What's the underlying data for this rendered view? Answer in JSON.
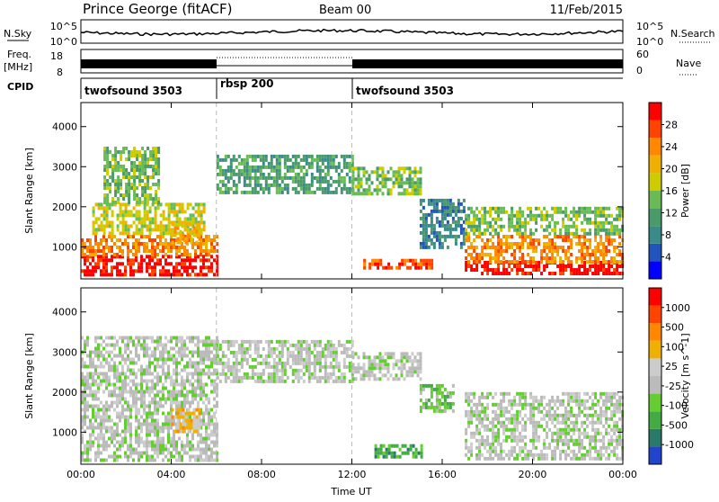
{
  "header": {
    "station": "Prince George (fitACF)",
    "beam": "Beam 00",
    "date": "11/Feb/2015"
  },
  "top_panels": {
    "nsky": {
      "label": "N.Sky",
      "ticks": [
        "10^5",
        "10^0"
      ],
      "right_label": "N.Search",
      "right_ticks": [
        "10^5",
        "10^0"
      ]
    },
    "freq": {
      "label_line1": "Freq.",
      "label_line2": "[MHz]",
      "ticks": [
        "18",
        "8"
      ],
      "right_label": "Nave",
      "right_ticks": [
        "60",
        "0"
      ]
    },
    "cpid": {
      "label": "CPID",
      "segments": [
        {
          "name": "twofsound 3503",
          "start_h": 0,
          "end_h": 6
        },
        {
          "name": "rbsp 200",
          "start_h": 6,
          "end_h": 12
        },
        {
          "name": "twofsound 3503",
          "start_h": 12,
          "end_h": 24
        }
      ]
    }
  },
  "chart_data": [
    {
      "type": "heatmap",
      "panel": "power",
      "ylabel": "Slant Range [km]",
      "xlabel": "",
      "y_ticks": [
        1000,
        2000,
        3000,
        4000
      ],
      "ylim": [
        200,
        4600
      ],
      "x_ticks_h": [
        0,
        4,
        8,
        12,
        16,
        20,
        24
      ],
      "xlim_h": [
        0,
        24
      ],
      "colorbar": {
        "label": "Power [dB]",
        "ticks": [
          "4",
          "8",
          "12",
          "16",
          "20",
          "24",
          "28"
        ],
        "colors": [
          "#0000ff",
          "#2255bb",
          "#3a8a8a",
          "#4a9a6a",
          "#6abb55",
          "#cccc00",
          "#f0b000",
          "#ff8800",
          "#ff4400",
          "#ff0000"
        ]
      },
      "regions": [
        {
          "t0": 0.0,
          "t1": 6.0,
          "r0": 300,
          "r1": 800,
          "level": 9
        },
        {
          "t0": 0.0,
          "t1": 6.0,
          "r0": 800,
          "r1": 1300,
          "level": 7
        },
        {
          "t0": 0.5,
          "t1": 5.5,
          "r0": 1300,
          "r1": 2100,
          "level": 5
        },
        {
          "t0": 1.0,
          "t1": 3.5,
          "r0": 2100,
          "r1": 3500,
          "level": 4
        },
        {
          "t0": 4.0,
          "t1": 5.3,
          "r0": 1100,
          "r1": 1600,
          "level": 6
        },
        {
          "t0": 6.0,
          "t1": 12.0,
          "r0": 2400,
          "r1": 3300,
          "level": 3
        },
        {
          "t0": 12.0,
          "t1": 15.0,
          "r0": 2300,
          "r1": 3000,
          "level": 4
        },
        {
          "t0": 12.5,
          "t1": 15.5,
          "r0": 450,
          "r1": 700,
          "level": 8
        },
        {
          "t0": 15.0,
          "t1": 17.0,
          "r0": 1000,
          "r1": 2200,
          "level": 2
        },
        {
          "t0": 17.0,
          "t1": 24.0,
          "r0": 300,
          "r1": 650,
          "level": 9
        },
        {
          "t0": 17.0,
          "t1": 24.0,
          "r0": 650,
          "r1": 1300,
          "level": 7
        },
        {
          "t0": 17.0,
          "t1": 24.0,
          "r0": 1300,
          "r1": 2000,
          "level": 4
        }
      ]
    },
    {
      "type": "heatmap",
      "panel": "velocity",
      "ylabel": "Slant Range [km]",
      "xlabel": "Time UT",
      "y_ticks": [
        1000,
        2000,
        3000,
        4000
      ],
      "ylim": [
        200,
        4600
      ],
      "x_ticks_h": [
        0,
        4,
        8,
        12,
        16,
        20,
        24
      ],
      "x_tick_labels": [
        "00:00",
        "04:00",
        "08:00",
        "12:00",
        "16:00",
        "20:00",
        "00:00"
      ],
      "xlim_h": [
        0,
        24
      ],
      "colorbar": {
        "label": "Velocity [m s^-1]",
        "ticks": [
          "1000",
          "500",
          "100",
          "25",
          "-25",
          "-100",
          "-500",
          "-1000"
        ],
        "colors": [
          "#2244cc",
          "#2a7a6a",
          "#44aa44",
          "#66cc33",
          "#bbbbbb",
          "#cccccc",
          "#f0b000",
          "#ff8800",
          "#ff4400",
          "#ff0000"
        ]
      },
      "regions": [
        {
          "t0": 0.0,
          "t1": 6.0,
          "r0": 300,
          "r1": 3400,
          "level": 4
        },
        {
          "t0": 4.0,
          "t1": 5.3,
          "r0": 1000,
          "r1": 1600,
          "level": 6
        },
        {
          "t0": 6.0,
          "t1": 12.0,
          "r0": 2300,
          "r1": 3300,
          "level": 4
        },
        {
          "t0": 12.0,
          "t1": 15.0,
          "r0": 2300,
          "r1": 3000,
          "level": 4
        },
        {
          "t0": 13.0,
          "t1": 15.2,
          "r0": 350,
          "r1": 700,
          "level": 2
        },
        {
          "t0": 15.0,
          "t1": 16.5,
          "r0": 1500,
          "r1": 2200,
          "level": 3
        },
        {
          "t0": 17.0,
          "t1": 24.0,
          "r0": 300,
          "r1": 2000,
          "level": 4
        }
      ]
    }
  ]
}
